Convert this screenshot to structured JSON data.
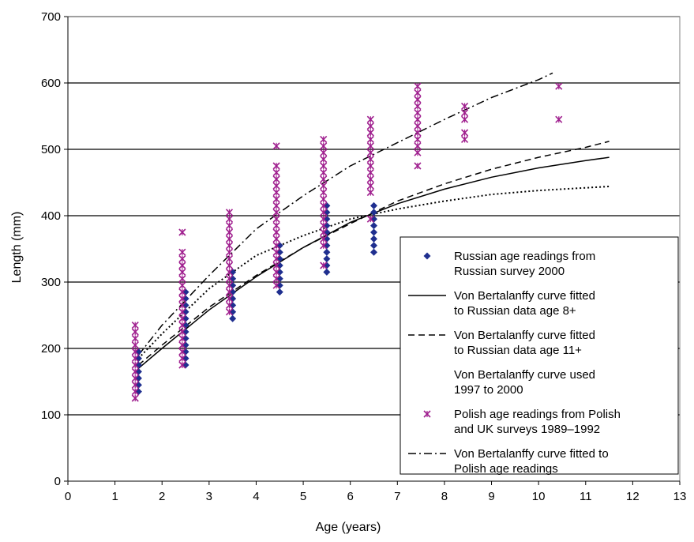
{
  "chart_data": {
    "type": "scatter",
    "title": "",
    "xlabel": "Age (years)",
    "ylabel": "Length (mm)",
    "xlim": [
      0,
      13
    ],
    "ylim": [
      0,
      700
    ],
    "xticks": [
      "0",
      "1",
      "2",
      "3",
      "4",
      "5",
      "6",
      "7",
      "8",
      "9",
      "10",
      "11",
      "12",
      "13"
    ],
    "yticks": [
      "0",
      "100",
      "200",
      "300",
      "400",
      "500",
      "600",
      "700"
    ],
    "grid": "horizontal",
    "legend_position": "bottom-right",
    "colors": {
      "russian": "#1f2f8f",
      "polish": "#a0208f",
      "curve": "#000000",
      "gridline": "#000000"
    },
    "series": [
      {
        "name": "Russian age readings from Russian survey 2000",
        "kind": "points",
        "marker": "diamond",
        "groups": [
          {
            "x": 1.5,
            "y": [
              135,
              145,
              155,
              165,
              175,
              185,
              195
            ]
          },
          {
            "x": 2.5,
            "y": [
              175,
              185,
              195,
              205,
              215,
              225,
              235,
              245,
              255,
              265,
              275,
              285
            ]
          },
          {
            "x": 3.5,
            "y": [
              245,
              255,
              265,
              275,
              285,
              295,
              305,
              315
            ]
          },
          {
            "x": 4.5,
            "y": [
              285,
              295,
              305,
              315,
              325,
              335,
              345,
              355
            ]
          },
          {
            "x": 5.5,
            "y": [
              315,
              325,
              335,
              345,
              355,
              365,
              375,
              385,
              395,
              405,
              415
            ]
          },
          {
            "x": 6.5,
            "y": [
              345,
              355,
              365,
              375,
              385,
              395,
              405,
              415
            ]
          }
        ]
      },
      {
        "name": "Polish age readings from Polish and UK surveys 1989–1992",
        "kind": "points",
        "marker": "asterisk",
        "groups": [
          {
            "x": 1.43,
            "y": [
              125,
              135,
              145,
              155,
              165,
              175,
              185,
              195,
              205,
              215,
              225,
              235
            ]
          },
          {
            "x": 2.43,
            "y": [
              175,
              185,
              195,
              205,
              215,
              225,
              235,
              245,
              255,
              265,
              275,
              285,
              295,
              305,
              315,
              325,
              335,
              345,
              375
            ]
          },
          {
            "x": 3.43,
            "y": [
              255,
              265,
              275,
              285,
              295,
              305,
              315,
              325,
              335,
              345,
              355,
              365,
              375,
              385,
              395,
              405
            ]
          },
          {
            "x": 4.43,
            "y": [
              295,
              305,
              315,
              325,
              335,
              345,
              355,
              365,
              375,
              385,
              395,
              405,
              415,
              425,
              435,
              445,
              455,
              465,
              475,
              505
            ]
          },
          {
            "x": 5.43,
            "y": [
              325,
              355,
              365,
              375,
              385,
              395,
              405,
              415,
              425,
              435,
              445,
              455,
              465,
              475,
              485,
              495,
              505,
              515
            ]
          },
          {
            "x": 6.43,
            "y": [
              395,
              435,
              445,
              455,
              465,
              475,
              485,
              495,
              505,
              515,
              525,
              535,
              545
            ]
          },
          {
            "x": 7.43,
            "y": [
              475,
              495,
              505,
              515,
              525,
              535,
              545,
              555,
              565,
              575,
              585,
              595
            ]
          },
          {
            "x": 8.43,
            "y": [
              515,
              525,
              545,
              555,
              565
            ]
          },
          {
            "x": 10.43,
            "y": [
              545,
              595
            ]
          }
        ]
      },
      {
        "name": "Von Bertalanffy curve fitted to Russian data age 8+",
        "kind": "line",
        "dash": "solid",
        "width": 1.5,
        "x": [
          1.5,
          2,
          3,
          4,
          5,
          6,
          7,
          8,
          9,
          10,
          11,
          11.5
        ],
        "y": [
          170,
          200,
          258,
          308,
          352,
          390,
          418,
          440,
          458,
          472,
          483,
          488
        ]
      },
      {
        "name": "Von Bertalanffy curve fitted to Russian data age 11+",
        "kind": "line",
        "dash": "8,5",
        "width": 1.5,
        "x": [
          1.5,
          2,
          3,
          4,
          5,
          6,
          7,
          8,
          9,
          10,
          11,
          11.5
        ],
        "y": [
          175,
          205,
          262,
          310,
          352,
          388,
          422,
          448,
          470,
          488,
          503,
          512
        ]
      },
      {
        "name": "Von Bertalanffy curve used 1997 to 2000",
        "kind": "line",
        "dash": "2,3",
        "width": 2,
        "x": [
          1.5,
          2,
          3,
          4,
          5,
          6,
          7,
          8,
          9,
          10,
          11,
          11.5
        ],
        "y": [
          185,
          222,
          290,
          340,
          370,
          395,
          410,
          422,
          432,
          438,
          442,
          444
        ]
      },
      {
        "name": "Von Bertalanffy curve fitted to Polish age readings",
        "kind": "line",
        "dash": "10,4,2,4",
        "width": 1.5,
        "x": [
          1.5,
          2,
          3,
          4,
          5,
          6,
          7,
          8,
          9,
          10,
          10.3
        ],
        "y": [
          190,
          235,
          310,
          380,
          430,
          475,
          510,
          545,
          578,
          605,
          615
        ]
      }
    ],
    "legend": [
      {
        "label_lines": [
          "Russian age readings from",
          "Russian survey 2000"
        ],
        "marker": "diamond"
      },
      {
        "label_lines": [
          "Von Bertalanffy curve fitted",
          "to Russian data age 8+"
        ],
        "marker": "solid"
      },
      {
        "label_lines": [
          "Von Bertalanffy curve fitted",
          "to Russian data age 11+"
        ],
        "marker": "dashed"
      },
      {
        "label_lines": [
          "Von Bertalanffy curve used",
          "1997 to 2000"
        ],
        "marker": "none"
      },
      {
        "label_lines": [
          "Polish age readings from Polish",
          "and UK surveys 1989–1992"
        ],
        "marker": "asterisk"
      },
      {
        "label_lines": [
          "Von Bertalanffy curve fitted to",
          "Polish age readings"
        ],
        "marker": "dashdot"
      }
    ]
  }
}
